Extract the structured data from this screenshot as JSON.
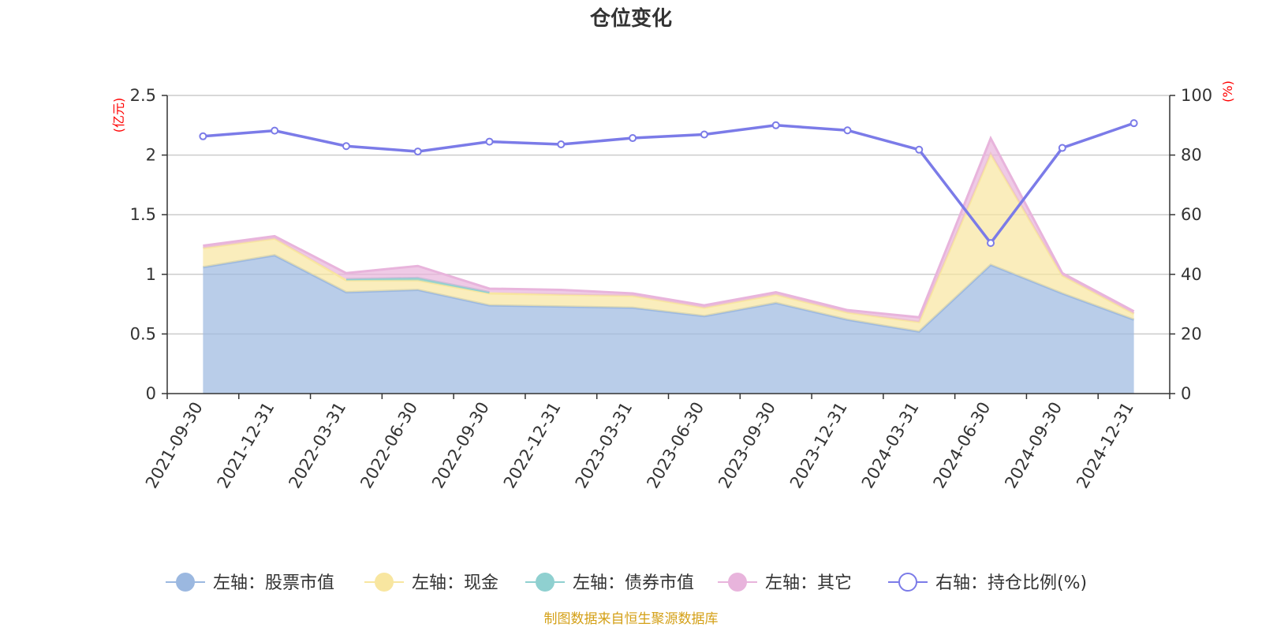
{
  "chart_data": {
    "type": "area",
    "title": "仓位变化",
    "categories": [
      "2021-09-30",
      "2021-12-31",
      "2022-03-31",
      "2022-06-30",
      "2022-09-30",
      "2022-12-31",
      "2023-03-31",
      "2023-06-30",
      "2023-09-30",
      "2023-12-31",
      "2024-03-31",
      "2024-06-30",
      "2024-09-30",
      "2024-12-31"
    ],
    "left_axis": {
      "unit": "(亿元)",
      "ylim": [
        0,
        2.5
      ],
      "ticks": [
        "0",
        "0.5",
        "1",
        "1.5",
        "2",
        "2.5"
      ]
    },
    "right_axis": {
      "unit": "(%)",
      "ylim": [
        0,
        100
      ],
      "ticks": [
        "0",
        "20",
        "40",
        "60",
        "80",
        "100"
      ]
    },
    "grid": true,
    "legend_position": "bottom",
    "series": [
      {
        "name": "左轴：股票市值",
        "axis": "left",
        "kind": "stacked-area",
        "color": "#9bb8e0",
        "values": [
          1.06,
          1.16,
          0.85,
          0.87,
          0.74,
          0.73,
          0.72,
          0.65,
          0.76,
          0.62,
          0.52,
          1.08,
          0.84,
          0.62
        ]
      },
      {
        "name": "左轴：现金",
        "axis": "left",
        "kind": "stacked-area",
        "color": "#f8e6a0",
        "values": [
          0.16,
          0.14,
          0.1,
          0.08,
          0.1,
          0.1,
          0.1,
          0.07,
          0.07,
          0.06,
          0.08,
          0.93,
          0.15,
          0.05
        ]
      },
      {
        "name": "左轴：债券市值",
        "axis": "left",
        "kind": "stacked-area",
        "color": "#8fd0d0",
        "values": [
          0,
          0,
          0.01,
          0.02,
          0.01,
          0,
          0,
          0,
          0,
          0,
          0,
          0,
          0,
          0
        ]
      },
      {
        "name": "左轴：其它",
        "axis": "left",
        "kind": "stacked-area",
        "color": "#e8b4dc",
        "values": [
          0.02,
          0.02,
          0.05,
          0.1,
          0.03,
          0.04,
          0.02,
          0.02,
          0.02,
          0.02,
          0.04,
          0.13,
          0.02,
          0.02
        ]
      },
      {
        "name": "右轴：持仓比例(%)",
        "axis": "right",
        "kind": "line",
        "color": "#7b7be8",
        "values": [
          86.3,
          88.2,
          83.0,
          81.2,
          84.5,
          83.6,
          85.7,
          86.9,
          90.0,
          88.3,
          81.8,
          50.5,
          82.4,
          90.7
        ]
      }
    ]
  },
  "source": "制图数据来自恒生聚源数据库"
}
